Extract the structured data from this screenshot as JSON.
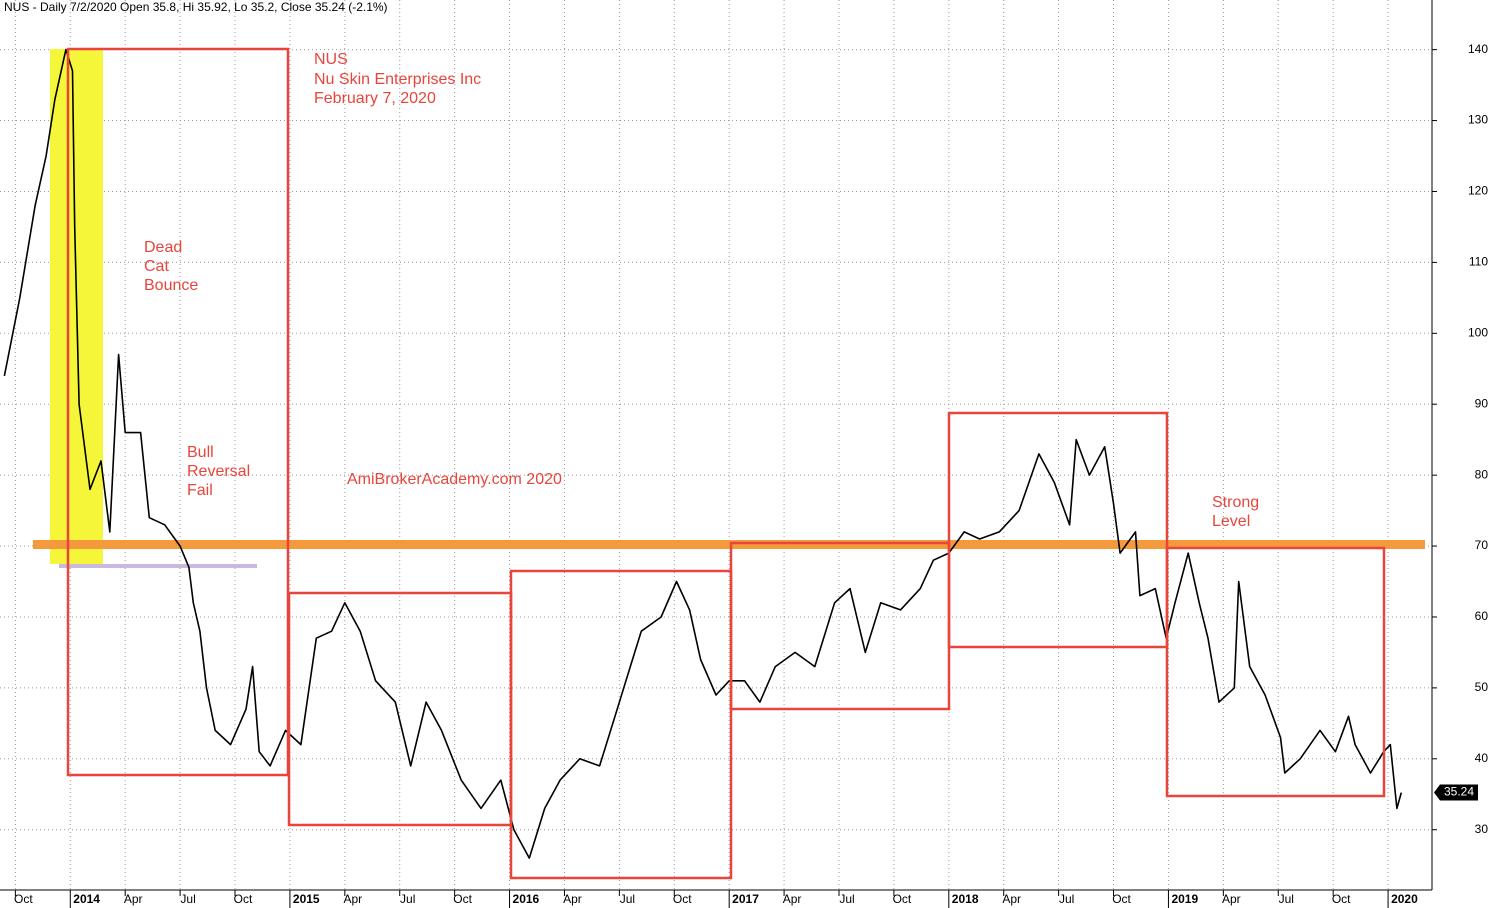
{
  "chart_data": {
    "type": "line",
    "header": "NUS - Daily 7/2/2020 Open 35.8, Hi 35.92, Lo 35.2, Close 35.24 (-2.1%)",
    "annotations": [
      "NUS",
      "Nu Skin Enterprises Inc",
      "February 7, 2020",
      "Dead",
      "Cat",
      "Bounce",
      "Bull",
      "Reversal",
      "Fail",
      "AmiBrokerAcademy.com 2020",
      "Strong",
      "Level"
    ],
    "color": "#000000",
    "x": [
      2013.7,
      2013.77,
      2013.84,
      2013.89,
      2013.93,
      2013.98,
      2014.01,
      2014.02,
      2014.04,
      2014.09,
      2014.14,
      2014.18,
      2014.22,
      2014.25,
      2014.32,
      2014.36,
      2014.43,
      2014.5,
      2014.54,
      2014.56,
      2014.59,
      2014.62,
      2014.66,
      2014.73,
      2014.8,
      2014.83,
      2014.86,
      2014.91,
      2014.98,
      2015.05,
      2015.12,
      2015.19,
      2015.25,
      2015.32,
      2015.39,
      2015.48,
      2015.55,
      2015.62,
      2015.69,
      2015.78,
      2015.87,
      2015.96,
      2016.02,
      2016.09,
      2016.16,
      2016.23,
      2016.32,
      2016.41,
      2016.48,
      2016.55,
      2016.6,
      2016.69,
      2016.76,
      2016.82,
      2016.87,
      2016.94,
      2017.0,
      2017.07,
      2017.14,
      2017.21,
      2017.3,
      2017.39,
      2017.48,
      2017.55,
      2017.62,
      2017.69,
      2017.78,
      2017.87,
      2017.93,
      2018.0,
      2018.07,
      2018.14,
      2018.23,
      2018.32,
      2018.41,
      2018.48,
      2018.55,
      2018.58,
      2018.64,
      2018.71,
      2018.75,
      2018.78,
      2018.85,
      2018.87,
      2018.94,
      2018.99,
      2019.03,
      2019.09,
      2019.14,
      2019.18,
      2019.23,
      2019.3,
      2019.32,
      2019.37,
      2019.44,
      2019.51,
      2019.53,
      2019.6,
      2019.69,
      2019.76,
      2019.82,
      2019.85,
      2019.92,
      2019.98,
      2020.01,
      2020.04,
      2020.06
    ],
    "values": [
      94,
      105,
      118,
      125,
      133,
      140,
      137,
      115,
      90,
      78,
      82,
      72,
      97,
      86,
      86,
      74,
      73,
      70,
      67,
      62,
      58,
      50,
      44,
      42,
      47,
      53,
      41,
      39,
      44,
      42,
      57,
      58,
      62,
      58,
      51,
      48,
      39,
      48,
      44,
      37,
      33,
      37,
      30,
      26,
      33,
      37,
      40,
      39,
      46,
      53,
      58,
      60,
      65,
      61,
      54,
      49,
      51,
      51,
      48,
      53,
      55,
      53,
      62,
      64,
      55,
      62,
      61,
      64,
      68,
      69,
      72,
      71,
      72,
      75,
      83,
      79,
      73,
      85,
      80,
      84,
      76,
      69,
      72,
      63,
      64,
      57,
      62,
      69,
      62,
      57,
      48,
      50,
      65,
      53,
      49,
      43,
      38,
      40,
      44,
      41,
      46,
      42,
      38,
      41,
      42,
      33,
      35.24
    ],
    "last_value": 35.24,
    "xlim": [
      2013.68,
      2020.2
    ],
    "xticks": [
      {
        "value": 2013.75,
        "label": "Oct"
      },
      2014,
      {
        "value": 2014.25,
        "label": "Apr"
      },
      {
        "value": 2014.5,
        "label": "Jul"
      },
      {
        "value": 2014.75,
        "label": "Oct"
      },
      2015,
      {
        "value": 2015.25,
        "label": "Apr"
      },
      {
        "value": 2015.5,
        "label": "Jul"
      },
      {
        "value": 2015.75,
        "label": "Oct"
      },
      2016,
      {
        "value": 2016.25,
        "label": "Apr"
      },
      {
        "value": 2016.5,
        "label": "Jul"
      },
      {
        "value": 2016.75,
        "label": "Oct"
      },
      2017,
      {
        "value": 2017.25,
        "label": "Apr"
      },
      {
        "value": 2017.5,
        "label": "Jul"
      },
      {
        "value": 2017.75,
        "label": "Oct"
      },
      2018,
      {
        "value": 2018.25,
        "label": "Apr"
      },
      {
        "value": 2018.5,
        "label": "Jul"
      },
      {
        "value": 2018.75,
        "label": "Oct"
      },
      2019,
      {
        "value": 2019.25,
        "label": "Apr"
      },
      {
        "value": 2019.5,
        "label": "Jul"
      },
      {
        "value": 2019.75,
        "label": "Oct"
      },
      2020
    ],
    "ylim": [
      21.5,
      147
    ],
    "yticks": [
      30,
      40,
      50,
      60,
      70,
      80,
      90,
      100,
      110,
      120,
      130,
      140
    ],
    "grid": true
  }
}
